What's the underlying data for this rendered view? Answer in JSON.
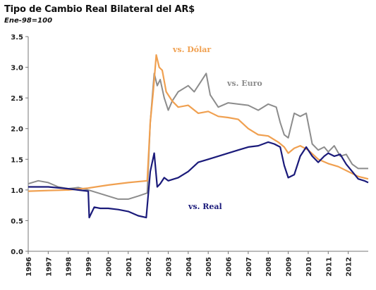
{
  "chart_data": {
    "type": "line",
    "title": "Tipo de Cambio Real Bilateral del AR$",
    "subtitle": "Ene-98=100",
    "xlabel": "",
    "ylabel": "",
    "x_range": [
      1996,
      2013
    ],
    "x_tick_labels": [
      "1996",
      "1997",
      "1998",
      "1999",
      "2000",
      "2001",
      "2002",
      "2003",
      "2004",
      "2005",
      "2006",
      "2007",
      "2008",
      "2009",
      "2010",
      "2011",
      "2012"
    ],
    "ylim": [
      0,
      3.5
    ],
    "y_tick_labels": [
      "0.0",
      "0.5",
      "1.0",
      "1.5",
      "2.0",
      "2.5",
      "3.0",
      "3.5"
    ],
    "grid": false,
    "colors": {
      "dolar": "#f0a050",
      "euro": "#8c8c8c",
      "real": "#1a1a7a"
    },
    "annotations": [
      {
        "text": "vs. Dólar",
        "series": "dolar"
      },
      {
        "text": "vs. Euro",
        "series": "euro"
      },
      {
        "text": "vs. Real",
        "series": "real"
      }
    ],
    "series": [
      {
        "key": "dolar",
        "x": [
          1996.0,
          1997.0,
          1998.0,
          1999.0,
          2000.0,
          2001.0,
          2001.95,
          2002.1,
          2002.25,
          2002.4,
          2002.55,
          2002.7,
          2002.9,
          2003.2,
          2003.5,
          2004.0,
          2004.5,
          2005.0,
          2005.5,
          2006.0,
          2006.5,
          2007.0,
          2007.5,
          2008.0,
          2008.5,
          2008.8,
          2009.0,
          2009.3,
          2009.6,
          2010.0,
          2010.5,
          2011.0,
          2011.5,
          2012.0,
          2012.5,
          2013.0
        ],
        "y": [
          0.98,
          0.99,
          1.0,
          1.03,
          1.08,
          1.12,
          1.15,
          2.1,
          2.6,
          3.2,
          3.0,
          2.95,
          2.6,
          2.45,
          2.35,
          2.38,
          2.25,
          2.28,
          2.2,
          2.18,
          2.15,
          2.0,
          1.9,
          1.88,
          1.78,
          1.7,
          1.6,
          1.68,
          1.72,
          1.65,
          1.5,
          1.43,
          1.38,
          1.3,
          1.22,
          1.18
        ]
      },
      {
        "key": "euro",
        "x": [
          1996.0,
          1996.5,
          1997.0,
          1997.5,
          1998.0,
          1998.5,
          1999.0,
          1999.5,
          2000.0,
          2000.5,
          2001.0,
          2001.5,
          2001.95,
          2002.1,
          2002.3,
          2002.45,
          2002.6,
          2002.8,
          2003.0,
          2003.2,
          2003.5,
          2004.0,
          2004.3,
          2004.6,
          2004.9,
          2005.1,
          2005.5,
          2006.0,
          2006.5,
          2007.0,
          2007.5,
          2008.0,
          2008.4,
          2008.6,
          2008.8,
          2009.0,
          2009.3,
          2009.6,
          2009.9,
          2010.2,
          2010.5,
          2010.8,
          2011.0,
          2011.3,
          2011.6,
          2011.9,
          2012.2,
          2012.5,
          2013.0
        ],
        "y": [
          1.1,
          1.15,
          1.12,
          1.05,
          1.02,
          1.04,
          1.0,
          0.95,
          0.9,
          0.85,
          0.85,
          0.9,
          0.95,
          2.1,
          2.9,
          2.7,
          2.8,
          2.5,
          2.3,
          2.45,
          2.6,
          2.7,
          2.6,
          2.75,
          2.9,
          2.55,
          2.35,
          2.42,
          2.4,
          2.38,
          2.3,
          2.4,
          2.35,
          2.1,
          1.9,
          1.85,
          2.25,
          2.2,
          2.25,
          1.75,
          1.65,
          1.7,
          1.62,
          1.72,
          1.55,
          1.58,
          1.42,
          1.35,
          1.35
        ]
      },
      {
        "key": "real",
        "x": [
          1996.0,
          1997.0,
          1998.0,
          1998.5,
          1999.0,
          1999.05,
          1999.3,
          1999.6,
          2000.0,
          2000.5,
          2001.0,
          2001.5,
          2001.9,
          2002.1,
          2002.3,
          2002.45,
          2002.6,
          2002.8,
          2003.0,
          2003.5,
          2004.0,
          2004.5,
          2005.0,
          2005.5,
          2006.0,
          2006.5,
          2007.0,
          2007.5,
          2008.0,
          2008.3,
          2008.6,
          2008.8,
          2009.0,
          2009.3,
          2009.6,
          2009.9,
          2010.2,
          2010.5,
          2010.8,
          2011.0,
          2011.3,
          2011.6,
          2011.9,
          2012.2,
          2012.5,
          2012.8,
          2013.0
        ],
        "y": [
          1.05,
          1.05,
          1.02,
          1.0,
          0.98,
          0.55,
          0.72,
          0.7,
          0.7,
          0.68,
          0.65,
          0.58,
          0.55,
          1.3,
          1.6,
          1.05,
          1.1,
          1.2,
          1.15,
          1.2,
          1.3,
          1.45,
          1.5,
          1.55,
          1.6,
          1.65,
          1.7,
          1.72,
          1.78,
          1.75,
          1.7,
          1.4,
          1.2,
          1.25,
          1.55,
          1.7,
          1.55,
          1.45,
          1.55,
          1.6,
          1.55,
          1.58,
          1.42,
          1.3,
          1.18,
          1.15,
          1.12
        ]
      }
    ]
  }
}
